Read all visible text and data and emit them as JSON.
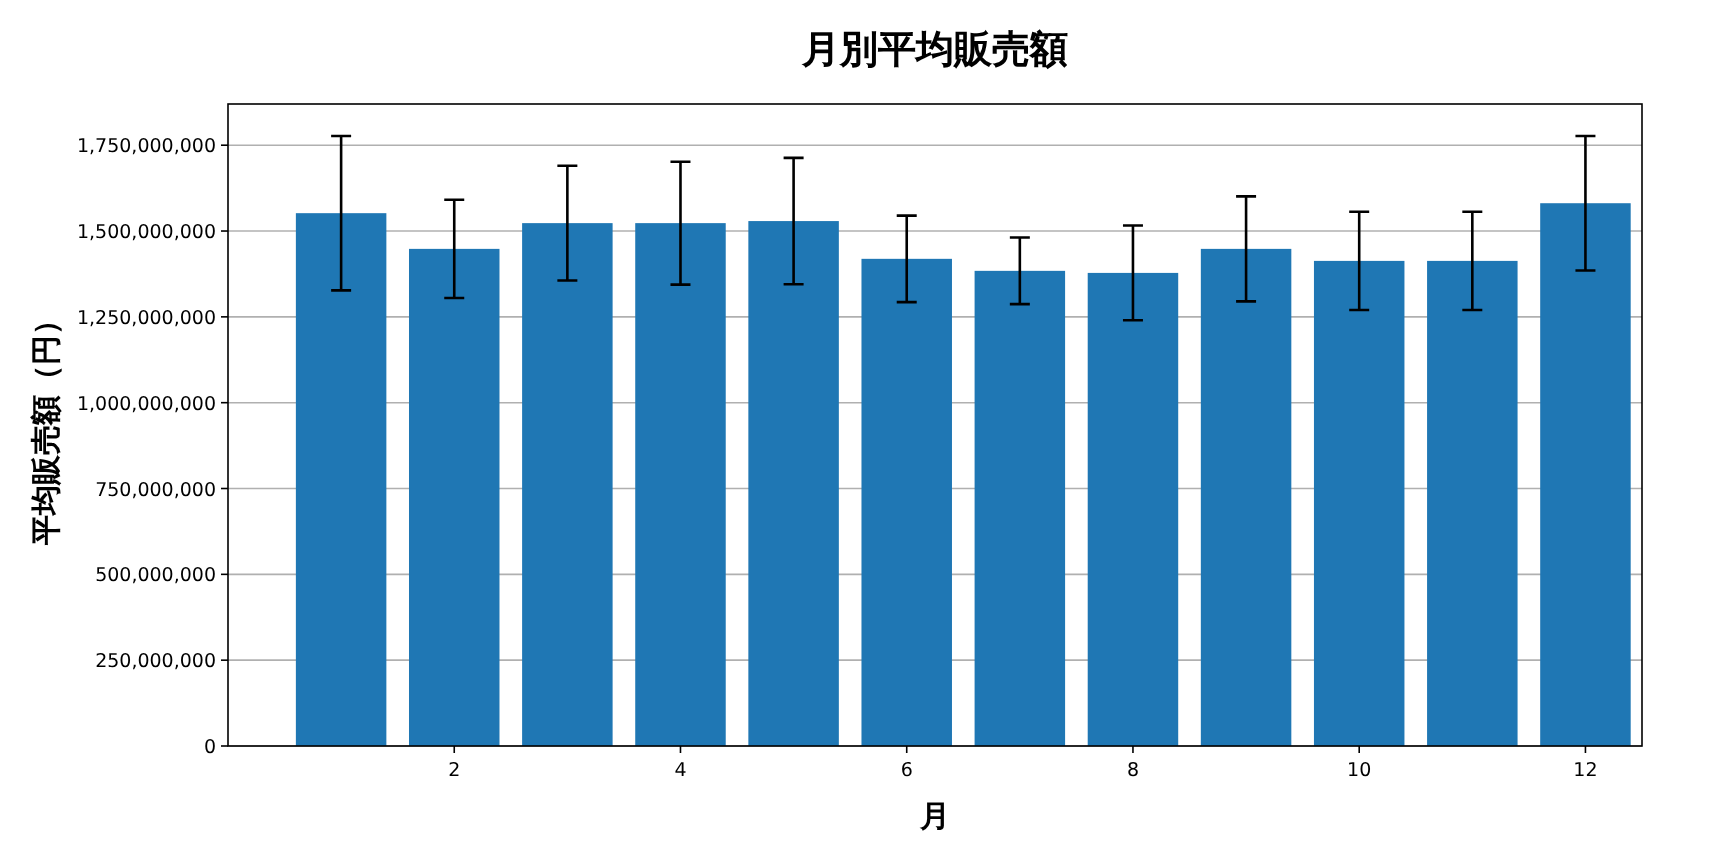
{
  "chart_data": {
    "type": "bar",
    "title": "月別平均販売額",
    "xlabel": "月",
    "ylabel": "平均販売額（円）",
    "x": [
      1,
      2,
      3,
      4,
      5,
      6,
      7,
      8,
      9,
      10,
      11,
      12
    ],
    "values": [
      1552000000,
      1448000000,
      1523000000,
      1523000000,
      1529000000,
      1419000000,
      1384000000,
      1378000000,
      1448000000,
      1413000000,
      1413000000,
      1581000000
    ],
    "errors": [
      225000000,
      143000000,
      167000000,
      179000000,
      184000000,
      126000000,
      97000000,
      138000000,
      153000000,
      143000000,
      143000000,
      196000000
    ],
    "color": "#1f77b4",
    "xlim": [
      0,
      12.5
    ],
    "xticks": [
      2,
      4,
      6,
      8,
      10,
      12
    ],
    "ylim": [
      0,
      1870000000
    ],
    "yticks": [
      0,
      {
        "value": 250000000,
        "label": "250,000,000"
      },
      {
        "value": 500000000,
        "label": "500,000,000"
      },
      {
        "value": 750000000,
        "label": "750,000,000"
      },
      {
        "value": 1000000000,
        "label": "1,000,000,000"
      },
      {
        "value": 1250000000,
        "label": "1,250,000,000"
      },
      {
        "value": 1500000000,
        "label": "1,500,000,000"
      },
      {
        "value": 1750000000,
        "label": "1,750,000,000"
      }
    ],
    "grid": "y"
  }
}
